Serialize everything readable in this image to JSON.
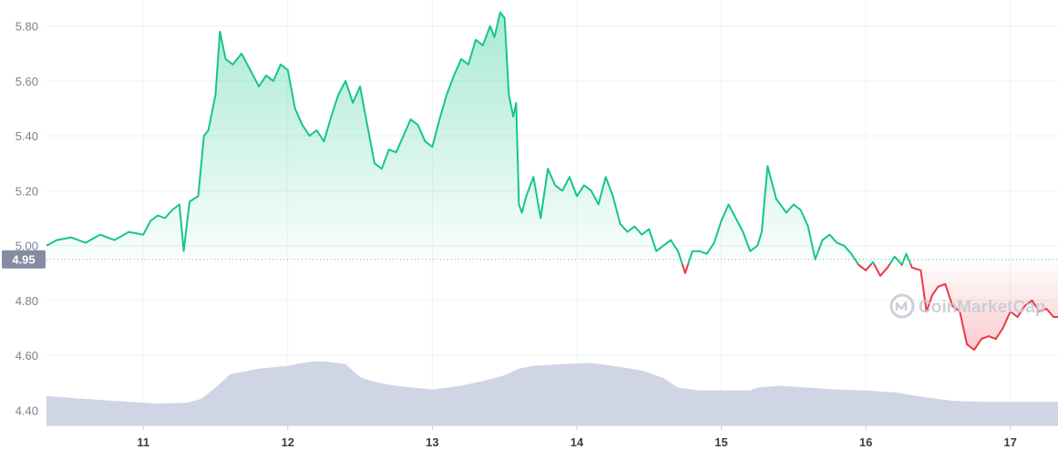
{
  "chart_data": {
    "type": "line",
    "y_ticks": [
      4.4,
      4.6,
      4.8,
      5.0,
      5.2,
      5.4,
      5.6,
      5.8
    ],
    "y_tick_labels": [
      "4.40",
      "4.60",
      "4.80",
      "5.00",
      "5.20",
      "5.40",
      "5.60",
      "5.80"
    ],
    "ylim": [
      4.345,
      5.895
    ],
    "xlim": [
      10.33,
      17.33
    ],
    "x_ticks": [
      11,
      12,
      13,
      14,
      15,
      16,
      17
    ],
    "x_tick_labels": [
      "11",
      "12",
      "13",
      "14",
      "15",
      "16",
      "17"
    ],
    "reference_value": 4.95,
    "reference_label": "4.95",
    "grid": true,
    "series": [
      {
        "role": "price",
        "x": [
          10.33,
          10.4,
          10.5,
          10.6,
          10.7,
          10.8,
          10.9,
          11.0,
          11.05,
          11.1,
          11.15,
          11.2,
          11.25,
          11.28,
          11.32,
          11.38,
          11.42,
          11.45,
          11.5,
          11.53,
          11.57,
          11.62,
          11.68,
          11.75,
          11.8,
          11.85,
          11.9,
          11.95,
          12.0,
          12.05,
          12.1,
          12.15,
          12.2,
          12.25,
          12.3,
          12.35,
          12.4,
          12.45,
          12.5,
          12.55,
          12.6,
          12.65,
          12.7,
          12.75,
          12.8,
          12.85,
          12.9,
          12.95,
          13.0,
          13.05,
          13.1,
          13.15,
          13.2,
          13.25,
          13.3,
          13.35,
          13.4,
          13.43,
          13.47,
          13.5,
          13.53,
          13.56,
          13.58,
          13.6,
          13.62,
          13.65,
          13.7,
          13.75,
          13.8,
          13.85,
          13.9,
          13.95,
          14.0,
          14.05,
          14.1,
          14.15,
          14.2,
          14.25,
          14.3,
          14.35,
          14.4,
          14.45,
          14.5,
          14.55,
          14.6,
          14.65,
          14.7,
          14.75,
          14.8,
          14.85,
          14.9,
          14.95,
          15.0,
          15.05,
          15.1,
          15.15,
          15.2,
          15.25,
          15.28,
          15.32,
          15.38,
          15.45,
          15.5,
          15.55,
          15.6,
          15.65,
          15.7,
          15.75,
          15.8,
          15.85,
          15.9,
          15.95,
          16.0,
          16.05,
          16.1,
          16.15,
          16.2,
          16.25,
          16.28,
          16.32,
          16.38,
          16.42,
          16.46,
          16.5,
          16.55,
          16.6,
          16.65,
          16.7,
          16.75,
          16.8,
          16.85,
          16.9,
          16.95,
          17.0,
          17.05,
          17.1,
          17.15,
          17.2,
          17.25,
          17.3,
          17.33
        ],
        "y": [
          5.0,
          5.02,
          5.03,
          5.01,
          5.04,
          5.02,
          5.05,
          5.04,
          5.09,
          5.11,
          5.1,
          5.13,
          5.15,
          4.98,
          5.16,
          5.18,
          5.4,
          5.42,
          5.55,
          5.78,
          5.68,
          5.66,
          5.7,
          5.63,
          5.58,
          5.62,
          5.6,
          5.66,
          5.64,
          5.5,
          5.44,
          5.4,
          5.42,
          5.38,
          5.47,
          5.55,
          5.6,
          5.52,
          5.58,
          5.44,
          5.3,
          5.28,
          5.35,
          5.34,
          5.4,
          5.46,
          5.44,
          5.38,
          5.36,
          5.46,
          5.55,
          5.62,
          5.68,
          5.66,
          5.75,
          5.73,
          5.8,
          5.76,
          5.85,
          5.83,
          5.55,
          5.47,
          5.52,
          5.15,
          5.12,
          5.18,
          5.25,
          5.1,
          5.28,
          5.22,
          5.2,
          5.25,
          5.18,
          5.22,
          5.2,
          5.15,
          5.25,
          5.18,
          5.08,
          5.05,
          5.07,
          5.04,
          5.06,
          4.98,
          5.0,
          5.02,
          4.98,
          4.9,
          4.98,
          4.98,
          4.97,
          5.01,
          5.09,
          5.15,
          5.1,
          5.05,
          4.98,
          5.0,
          5.05,
          5.29,
          5.17,
          5.12,
          5.15,
          5.13,
          5.07,
          4.95,
          5.02,
          5.04,
          5.01,
          5.0,
          4.97,
          4.93,
          4.91,
          4.94,
          4.89,
          4.92,
          4.96,
          4.93,
          4.97,
          4.92,
          4.91,
          4.76,
          4.82,
          4.85,
          4.86,
          4.78,
          4.76,
          4.64,
          4.62,
          4.66,
          4.67,
          4.66,
          4.7,
          4.76,
          4.74,
          4.78,
          4.8,
          4.76,
          4.77,
          4.74,
          4.74
        ]
      },
      {
        "role": "volume",
        "x": [
          10.33,
          10.5,
          10.7,
          10.9,
          11.1,
          11.3,
          11.4,
          11.5,
          11.6,
          11.8,
          12.0,
          12.1,
          12.2,
          12.3,
          12.4,
          12.5,
          12.6,
          12.7,
          12.8,
          13.0,
          13.2,
          13.35,
          13.5,
          13.6,
          13.7,
          13.9,
          14.1,
          14.3,
          14.45,
          14.6,
          14.7,
          14.85,
          15.0,
          15.2,
          15.25,
          15.4,
          15.6,
          15.8,
          16.0,
          16.1,
          16.2,
          16.4,
          16.6,
          16.8,
          17.0,
          17.2,
          17.33
        ],
        "level": [
          0.31,
          0.29,
          0.27,
          0.25,
          0.23,
          0.24,
          0.28,
          0.4,
          0.54,
          0.6,
          0.63,
          0.66,
          0.68,
          0.67,
          0.65,
          0.51,
          0.46,
          0.43,
          0.41,
          0.38,
          0.42,
          0.47,
          0.53,
          0.6,
          0.63,
          0.65,
          0.66,
          0.62,
          0.58,
          0.5,
          0.4,
          0.37,
          0.37,
          0.37,
          0.4,
          0.42,
          0.4,
          0.38,
          0.37,
          0.36,
          0.35,
          0.3,
          0.26,
          0.25,
          0.25,
          0.25,
          0.25
        ]
      }
    ],
    "colors": {
      "up": "#16c784",
      "down": "#ea3943",
      "volume": "#cfd5e4",
      "ref_label_bg": "#858ca2"
    }
  },
  "watermark": {
    "text": "CoinMarketCap",
    "icon": "coinmarketcap-logo-icon"
  }
}
